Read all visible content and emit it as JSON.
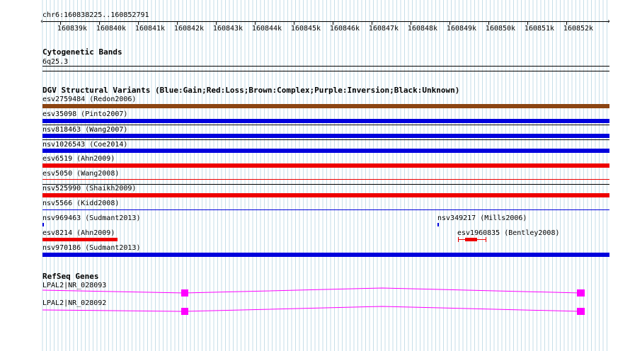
{
  "region": "chr6:160838225..160852791",
  "ruler": {
    "ticks": [
      "160839k",
      "160840k",
      "160841k",
      "160842k",
      "160843k",
      "160844k",
      "160845k",
      "160846k",
      "160847k",
      "160848k",
      "160849k",
      "160850k",
      "160851k",
      "160852k"
    ]
  },
  "cytoband": {
    "title": "Cytogenetic Bands",
    "band": "6q25.3"
  },
  "dgv": {
    "title": "DGV Structural Variants (Blue:Gain;Red:Loss;Brown:Complex;Purple:Inversion;Black:Unknown)",
    "colors": {
      "gain": "#0000dd",
      "loss": "#ee0000",
      "complex": "#8b4513",
      "inversion": "#800080",
      "unknown": "#000000"
    },
    "rows": [
      {
        "label": "esv2759484 (Redon2006)",
        "type": "complex"
      },
      {
        "label": "esv35098 (Pinto2007)",
        "type": "gain"
      },
      {
        "label": "nsv818463 (Wang2007)",
        "type": "gain"
      },
      {
        "label": "nsv1026543 (Coe2014)",
        "type": "gain"
      },
      {
        "label": "esv6519 (Ahn2009)",
        "type": "loss"
      },
      {
        "label": "esv5050 (Wang2008)",
        "type": "loss"
      },
      {
        "label": "nsv525990 (Shaikh2009)",
        "type": "loss"
      },
      {
        "label": "nsv5566 (Kidd2008)",
        "type": "gain"
      }
    ],
    "small": {
      "a": {
        "label": "nsv969463 (Sudmant2013)",
        "type": "gain"
      },
      "b": {
        "label": "nsv349217 (Mills2006)",
        "type": "gain"
      },
      "c": {
        "label": "esv8214 (Ahn2009)",
        "type": "loss"
      },
      "d": {
        "label": "esv1960835 (Bentley2008)",
        "type": "loss"
      },
      "e": {
        "label": "nsv970186 (Sudmant2013)",
        "type": "gain"
      }
    }
  },
  "refseq": {
    "title": "RefSeq Genes",
    "color": "#ff00ff",
    "genes": [
      {
        "label": "LPAL2|NR_028093"
      },
      {
        "label": "LPAL2|NR_028092"
      }
    ]
  }
}
